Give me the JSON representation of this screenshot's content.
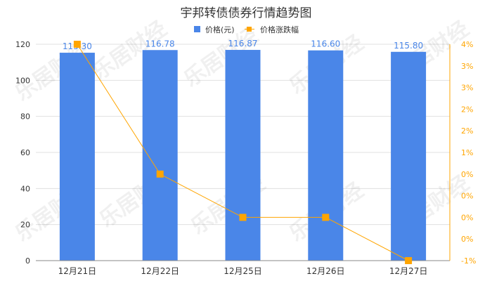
{
  "chart_data": {
    "type": "bar+line",
    "title": "宇邦转债债券行情趋势图",
    "categories": [
      "12月21日",
      "12月22日",
      "12月25日",
      "12月26日",
      "12月27日"
    ],
    "series": [
      {
        "name": "价格(元)",
        "type": "bar",
        "axis": "left",
        "values": [
          115.3,
          116.78,
          116.87,
          116.6,
          115.8
        ],
        "color": "#4a86e8"
      },
      {
        "name": "价格涨跌幅",
        "type": "line",
        "axis": "right",
        "values": [
          4.0,
          1.0,
          0.0,
          0.0,
          -1.0
        ],
        "color": "#ffa500"
      }
    ],
    "left_axis": {
      "ylim": [
        0,
        120
      ],
      "ticks": [
        "0",
        "20",
        "40",
        "60",
        "80",
        "100",
        "120"
      ]
    },
    "right_axis": {
      "ylim": [
        -1,
        4
      ],
      "ticks": [
        "-1%",
        "0%",
        "0%",
        "0%",
        "0%",
        "1%",
        "2%",
        "2%",
        "3%",
        "3%",
        "4%"
      ]
    },
    "grid": true,
    "legend": "top-right"
  },
  "watermark": "乐居财经"
}
